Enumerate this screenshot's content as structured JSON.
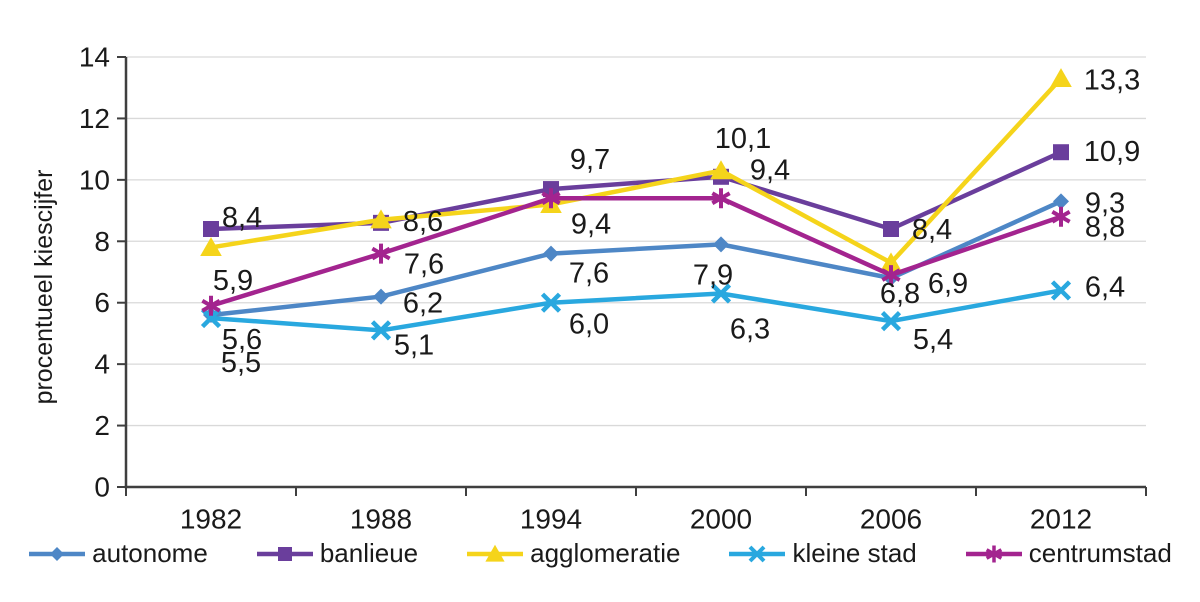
{
  "figure": {
    "background": "#ffffff",
    "text_color": "#1a1a1a",
    "grid_color": "#d9d9d9",
    "axis_color": "#3f3f3f"
  },
  "chart_data": {
    "type": "line",
    "title": "",
    "xlabel": "",
    "ylabel": "procentueel kiescijfer",
    "categories": [
      "1982",
      "1988",
      "1994",
      "2000",
      "2006",
      "2012"
    ],
    "ylim": [
      0,
      14
    ],
    "yticks": [
      0,
      2,
      4,
      6,
      8,
      10,
      12,
      14
    ],
    "grid": true,
    "legend_position": "bottom",
    "decimal_separator": ",",
    "series": [
      {
        "name": "autonome",
        "color": "#4E87C6",
        "marker": "diamond",
        "values": [
          5.6,
          6.2,
          7.6,
          7.9,
          6.8,
          9.3
        ],
        "labels": [
          {
            "text": "5,6",
            "dx": 31,
            "dy": 25
          },
          {
            "text": "6,2",
            "dx": 42,
            "dy": 7
          },
          {
            "text": "7,6",
            "dx": 38,
            "dy": 20
          },
          {
            "text": "7,9",
            "dx": -8,
            "dy": 31
          },
          {
            "text": "6,8",
            "dx": 9,
            "dy": 16
          },
          {
            "text": "9,3",
            "dx": 44,
            "dy": 2
          }
        ]
      },
      {
        "name": "banlieue",
        "color": "#6A3E9C",
        "marker": "square",
        "values": [
          8.4,
          8.6,
          9.7,
          10.1,
          8.4,
          10.9
        ],
        "labels": [
          {
            "text": "8,4",
            "dx": 31,
            "dy": -11
          },
          {
            "text": "8,6",
            "dx": 42,
            "dy": -1
          },
          {
            "text": "9,7",
            "dx": 39,
            "dy": -29
          },
          {
            "text": "10,1",
            "dx": 22,
            "dy": -38
          },
          {
            "text": "8,4",
            "dx": 41,
            "dy": 1
          },
          {
            "text": "10,9",
            "dx": 51,
            "dy": 0
          }
        ]
      },
      {
        "name": "agglomeratie",
        "color": "#F5D41B",
        "marker": "triangle",
        "values": [
          7.8,
          8.7,
          9.2,
          10.3,
          7.3,
          13.3
        ],
        "labels": [
          null,
          null,
          null,
          null,
          null,
          {
            "text": "13,3",
            "dx": 51,
            "dy": 2
          }
        ]
      },
      {
        "name": "kleine stad",
        "color": "#29A8DF",
        "marker": "x",
        "values": [
          5.5,
          5.1,
          6.0,
          6.3,
          5.4,
          6.4
        ],
        "labels": [
          {
            "text": "5,5",
            "dx": 30,
            "dy": 45
          },
          {
            "text": "5,1",
            "dx": 33,
            "dy": 15
          },
          {
            "text": "6,0",
            "dx": 38,
            "dy": 22
          },
          {
            "text": "6,3",
            "dx": 29,
            "dy": 36
          },
          {
            "text": "5,4",
            "dx": 42,
            "dy": 19
          },
          {
            "text": "6,4",
            "dx": 44,
            "dy": -3
          }
        ]
      },
      {
        "name": "centrumstad",
        "color": "#A3248F",
        "marker": "asterisk",
        "values": [
          5.9,
          7.6,
          9.4,
          9.4,
          6.9,
          8.8
        ],
        "labels": [
          {
            "text": "5,9",
            "dx": 22,
            "dy": -25
          },
          {
            "text": "7,6",
            "dx": 43,
            "dy": 11
          },
          {
            "text": "9,4",
            "dx": 40,
            "dy": 26
          },
          {
            "text": "9,4",
            "dx": 49,
            "dy": -28
          },
          {
            "text": "6,9",
            "dx": 57,
            "dy": 9
          },
          {
            "text": "8,8",
            "dx": 44,
            "dy": 11
          }
        ]
      }
    ]
  }
}
